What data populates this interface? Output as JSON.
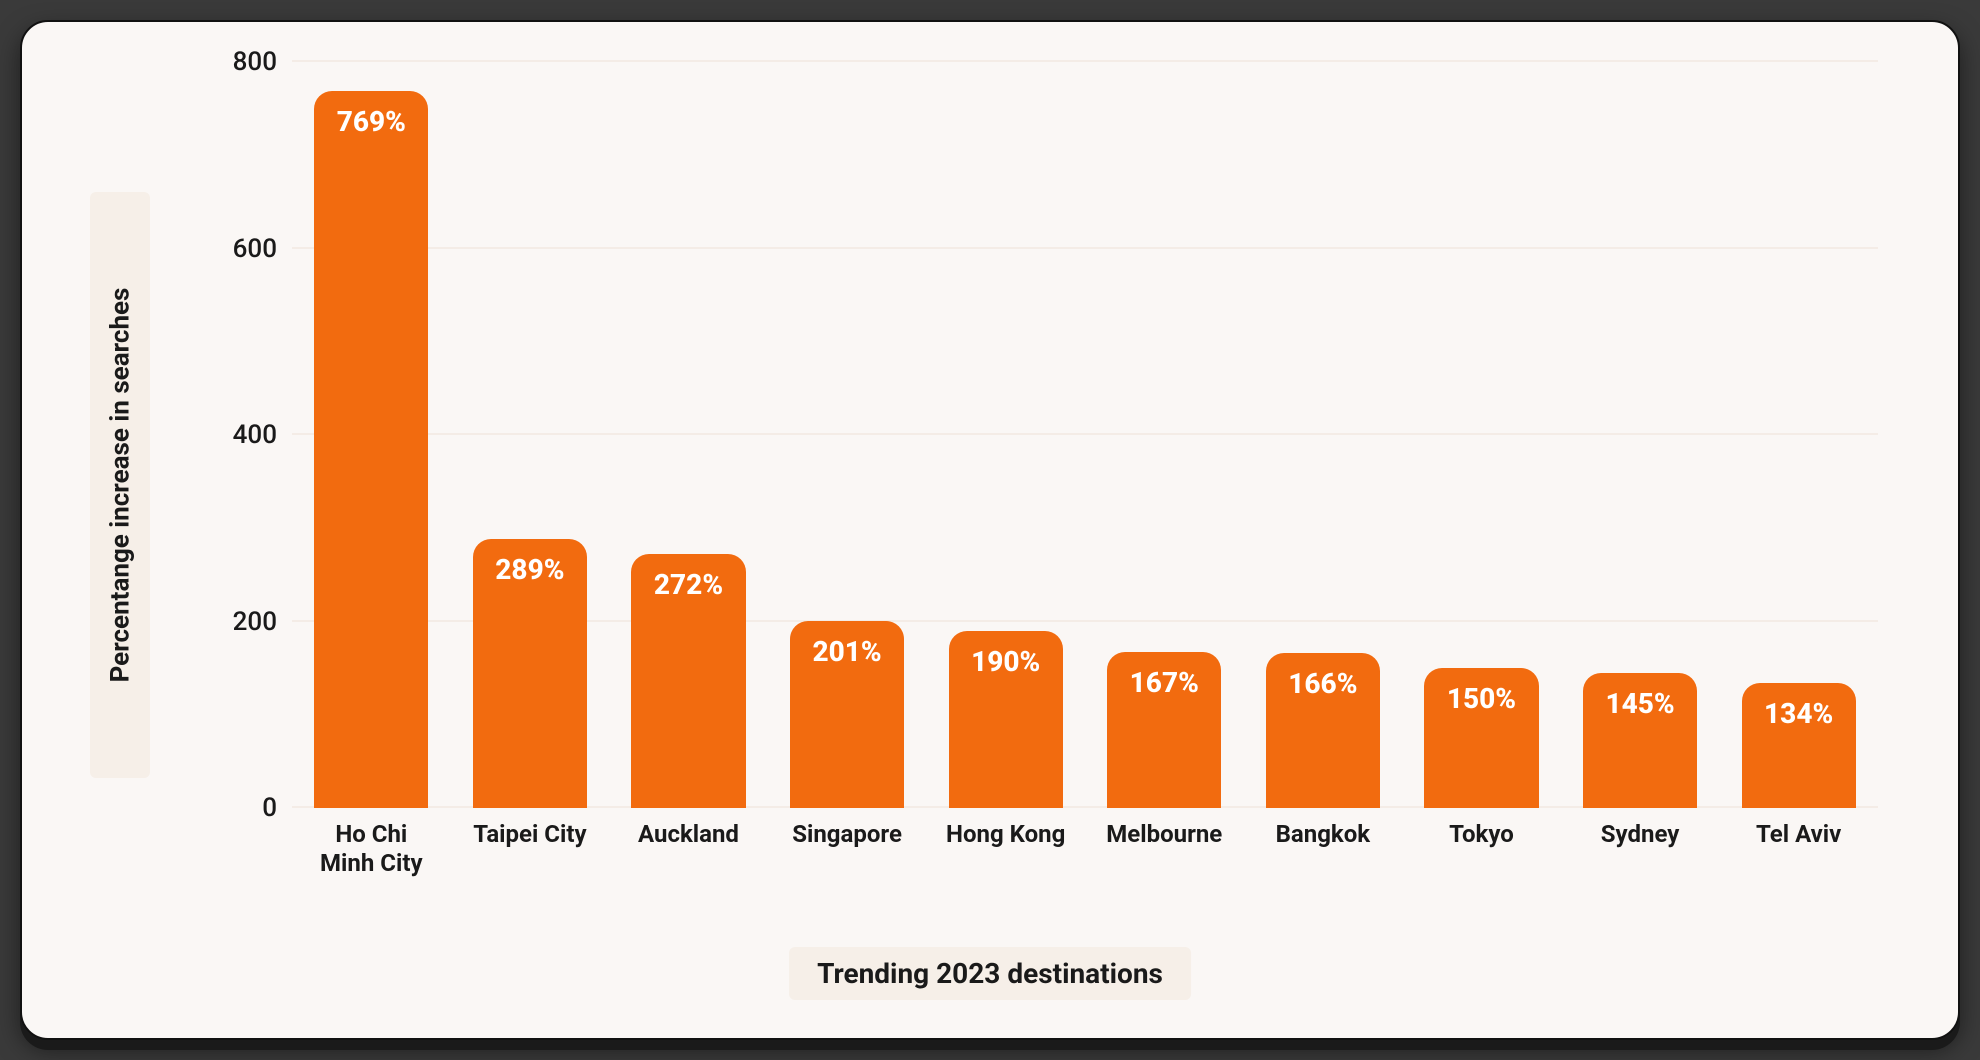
{
  "chart": {
    "type": "bar",
    "xlabel": "Trending 2023 destinations",
    "ylabel": "Percentange increase in searches",
    "ylim": [
      0,
      800
    ],
    "yticks": [
      0,
      200,
      400,
      600,
      800
    ],
    "background_color": "#faf7f5",
    "grid_color": "#f4ece6",
    "bar_color": "#f26b0f",
    "bar_border_radius": 18,
    "value_label_color": "#ffffff",
    "value_label_fontsize": 28,
    "value_label_fontweight": 800,
    "axis_label_bg": "#f6efe8",
    "axis_label_fontsize": 28,
    "axis_label_fontweight": 700,
    "tick_label_fontsize": 26,
    "tick_label_color": "#1a1a1a",
    "categories": [
      "Ho Chi Minh City",
      "Taipei City",
      "Auckland",
      "Singapore",
      "Hong Kong",
      "Melbourne",
      "Bangkok",
      "Tokyo",
      "Sydney",
      "Tel Aviv"
    ],
    "values": [
      769,
      289,
      272,
      201,
      190,
      167,
      166,
      150,
      145,
      134
    ],
    "value_suffix": "%"
  },
  "card": {
    "border_radius": 28,
    "border_color": "#111111",
    "shadow_color": "#1a1a1a"
  }
}
